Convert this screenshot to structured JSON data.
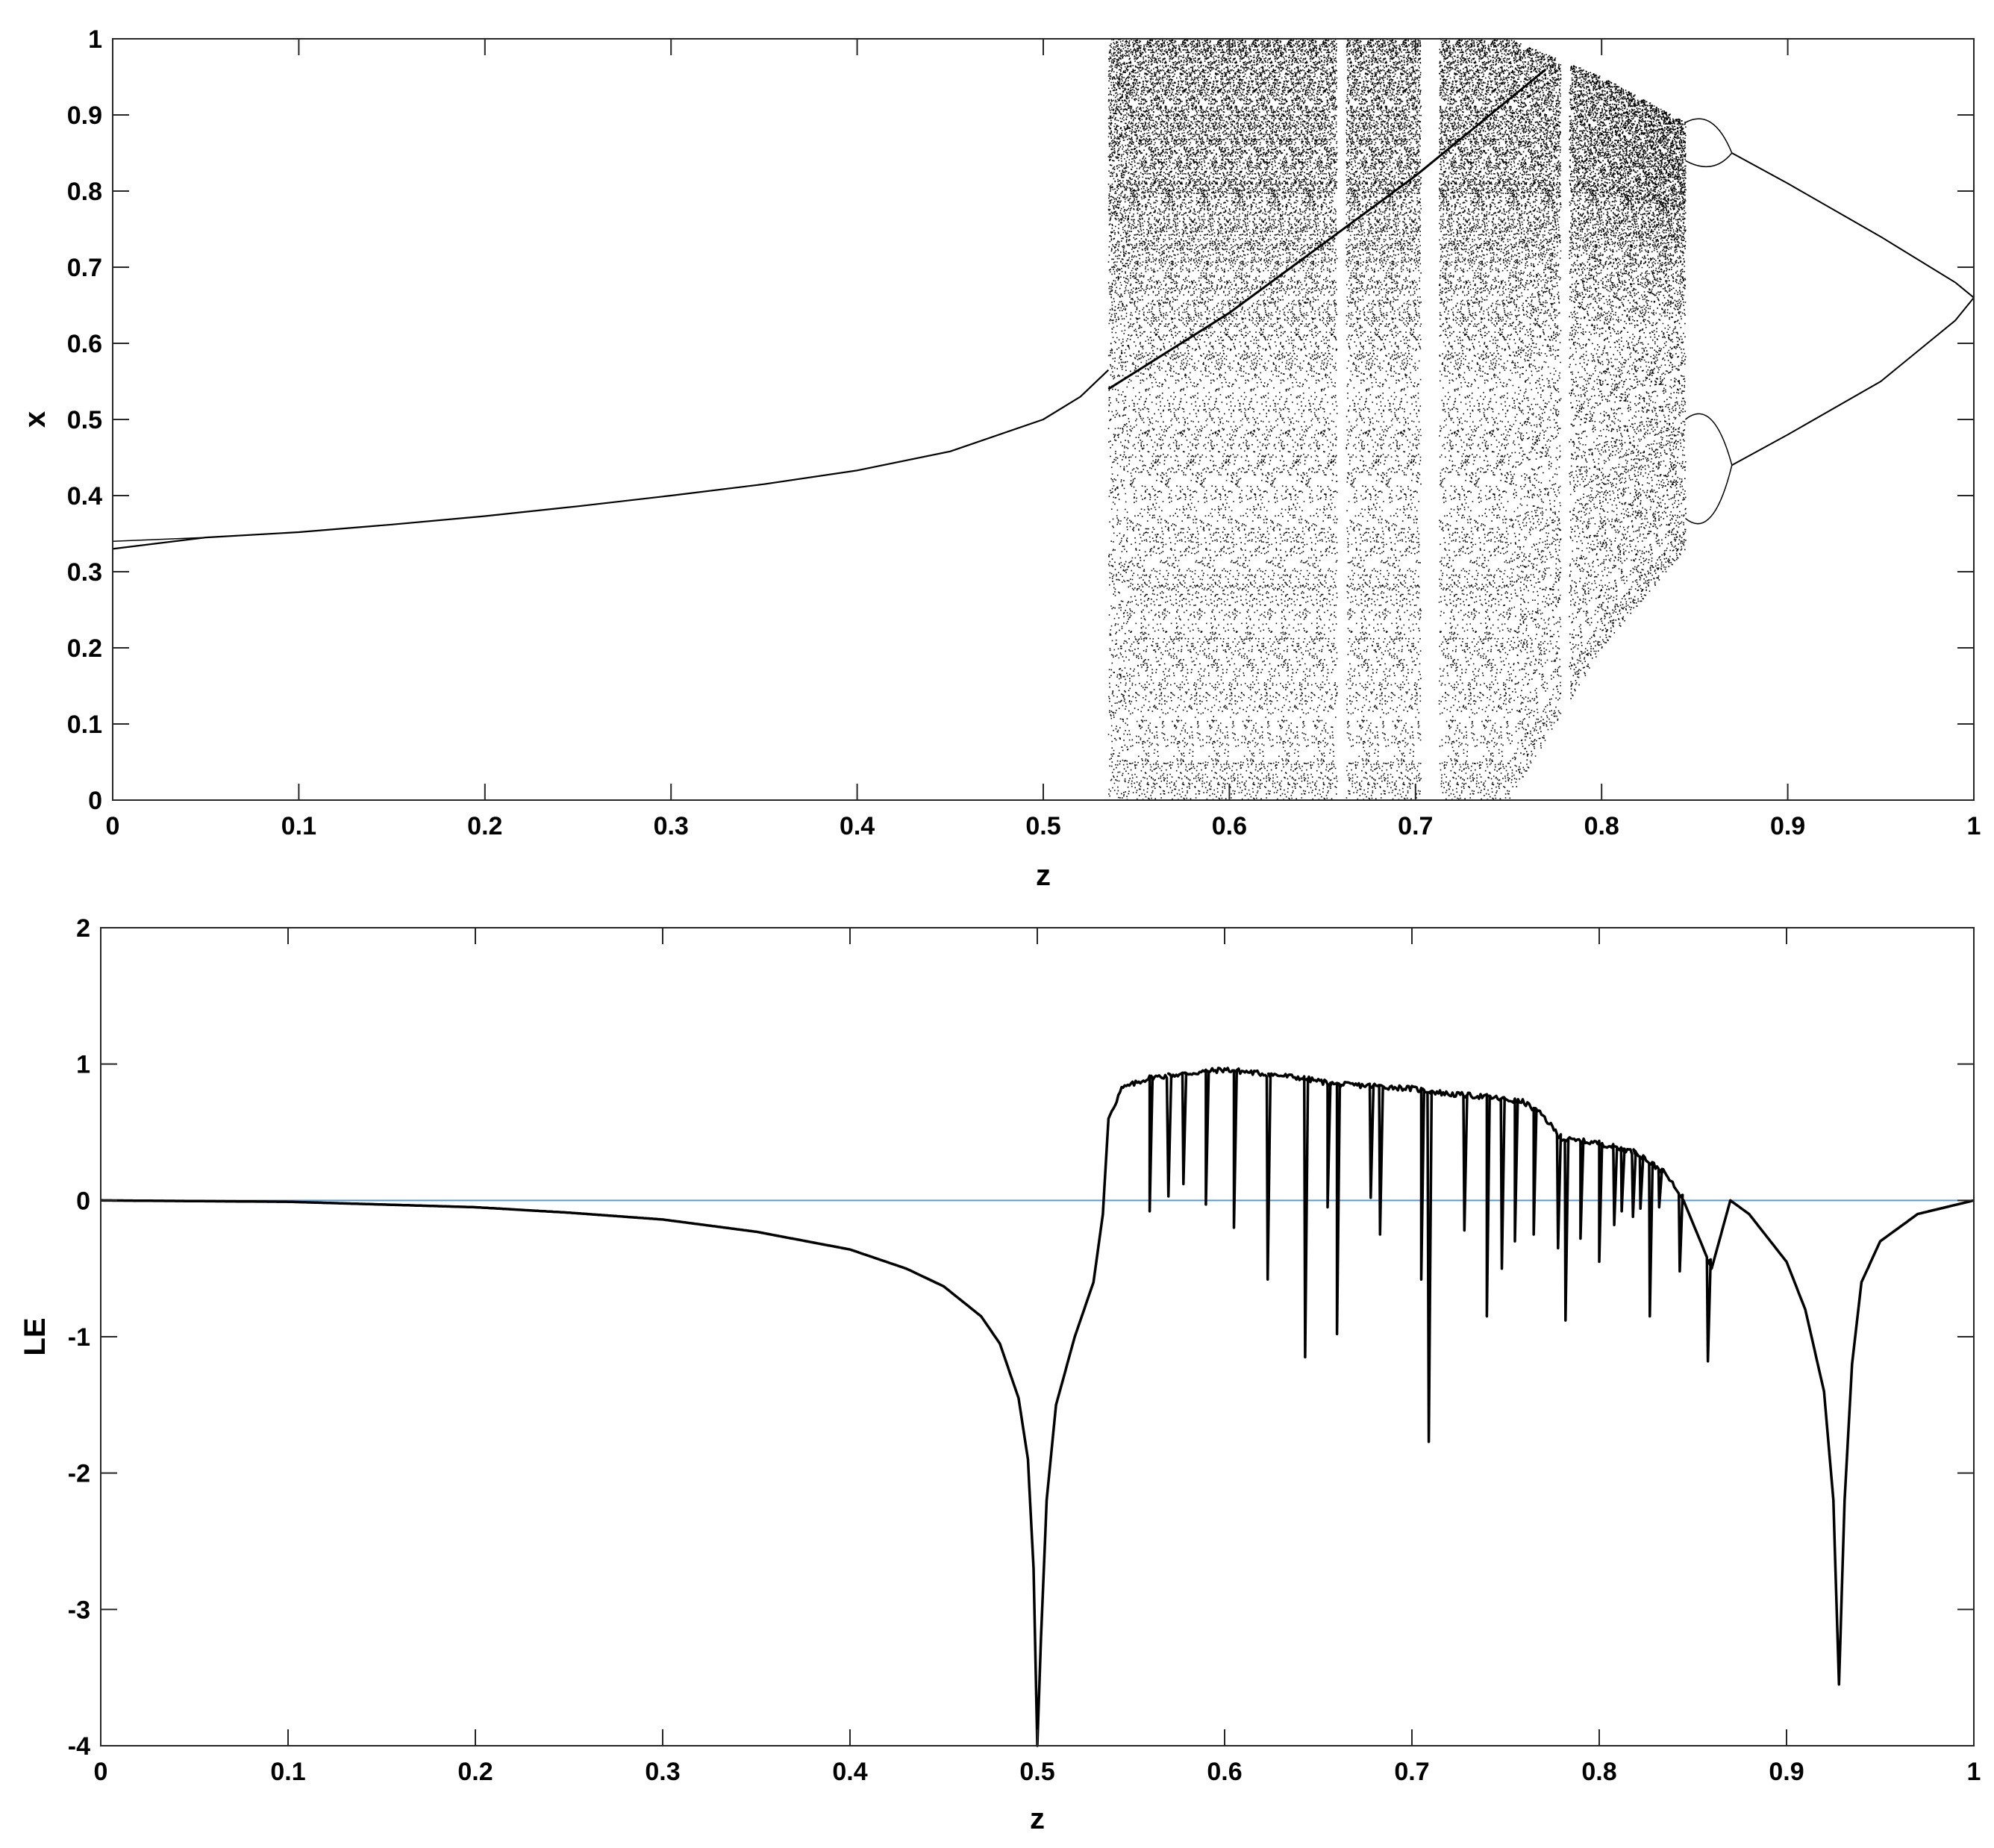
{
  "chart_data": [
    {
      "type": "scatter",
      "panel": "top",
      "description_kind": "bifurcation diagram",
      "xlabel": "z",
      "ylabel": "x",
      "xlim": [
        0,
        1
      ],
      "ylim": [
        0,
        1
      ],
      "xticks": [
        "0",
        "0.1",
        "0.2",
        "0.3",
        "0.4",
        "0.5",
        "0.6",
        "0.7",
        "0.8",
        "0.9",
        "1"
      ],
      "yticks": [
        "0",
        "0.1",
        "0.2",
        "0.3",
        "0.4",
        "0.5",
        "0.6",
        "0.7",
        "0.8",
        "0.9",
        "1"
      ],
      "grid": false,
      "marker_color": "#000000",
      "fixed_point_curve": {
        "x": [
          0,
          0.05,
          0.1,
          0.15,
          0.2,
          0.25,
          0.3,
          0.35,
          0.4,
          0.45,
          0.5,
          0.52,
          0.535
        ],
        "y": [
          0.33,
          0.345,
          0.352,
          0.362,
          0.373,
          0.386,
          0.4,
          0.415,
          0.433,
          0.458,
          0.5,
          0.53,
          0.565
        ]
      },
      "chaotic_region": {
        "z_range": [
          0.535,
          0.845
        ],
        "upper_envelope": {
          "x": [
            0.535,
            0.6,
            0.75,
            0.8,
            0.845
          ],
          "y": [
            1.0,
            1.0,
            1.0,
            0.95,
            0.89
          ]
        },
        "lower_envelope": {
          "x": [
            0.535,
            0.75,
            0.8,
            0.845
          ],
          "y": [
            0.0,
            0.0,
            0.2,
            0.33
          ]
        },
        "periodic_windows": [
          0.66,
          0.705,
          0.71,
          0.78
        ]
      },
      "period_two_branch": {
        "x": [
          0.87,
          0.9,
          0.95,
          0.99,
          1.0
        ],
        "upper": [
          0.85,
          0.81,
          0.74,
          0.68,
          0.66
        ],
        "lower": [
          0.44,
          0.48,
          0.55,
          0.63,
          0.66
        ]
      }
    },
    {
      "type": "line",
      "panel": "bottom",
      "xlabel": "z",
      "ylabel": "LE",
      "xlim": [
        0,
        1
      ],
      "ylim": [
        -4,
        2
      ],
      "xticks": [
        "0",
        "0.1",
        "0.2",
        "0.3",
        "0.4",
        "0.5",
        "0.6",
        "0.7",
        "0.8",
        "0.9",
        "1"
      ],
      "yticks": [
        "-4",
        "-3",
        "-2",
        "-1",
        "0",
        "1",
        "2"
      ],
      "grid": false,
      "line_color": "#000000",
      "reference_line": {
        "y": 0,
        "color": "#5b9bd5"
      },
      "series": [
        {
          "x": [
            0,
            0.1,
            0.2,
            0.25,
            0.3,
            0.35,
            0.4,
            0.43,
            0.45,
            0.47,
            0.48,
            0.49,
            0.495,
            0.498,
            0.5,
            0.502,
            0.505,
            0.51,
            0.52,
            0.53,
            0.535,
            0.538,
            0.545,
            0.56,
            0.58,
            0.6,
            0.62,
            0.64,
            0.66,
            0.68,
            0.7,
            0.71,
            0.72,
            0.74,
            0.76,
            0.77,
            0.78,
            0.8,
            0.82,
            0.835,
            0.845,
            0.86,
            0.87,
            0.88,
            0.9,
            0.91,
            0.92,
            0.925,
            0.928,
            0.931,
            0.935,
            0.94,
            0.95,
            0.97,
            1.0
          ],
          "y": [
            0,
            -0.01,
            -0.05,
            -0.09,
            -0.14,
            -0.23,
            -0.36,
            -0.5,
            -0.63,
            -0.85,
            -1.05,
            -1.45,
            -1.9,
            -2.7,
            -4.0,
            -3.2,
            -2.2,
            -1.5,
            -1.0,
            -0.6,
            -0.1,
            0.6,
            0.82,
            0.9,
            0.93,
            0.96,
            0.93,
            0.9,
            0.85,
            0.84,
            0.82,
            0.8,
            0.78,
            0.76,
            0.72,
            0.62,
            0.45,
            0.42,
            0.35,
            0.2,
            0.0,
            -0.5,
            0.0,
            -0.1,
            -0.45,
            -0.8,
            -1.4,
            -2.2,
            -3.55,
            -2.2,
            -1.2,
            -0.6,
            -0.3,
            -0.1,
            0.0
          ]
        }
      ],
      "negative_spikes": [
        {
          "x": 0.56,
          "y": -0.08
        },
        {
          "x": 0.57,
          "y": 0.03
        },
        {
          "x": 0.578,
          "y": 0.12
        },
        {
          "x": 0.59,
          "y": -0.03
        },
        {
          "x": 0.605,
          "y": -0.2
        },
        {
          "x": 0.623,
          "y": -0.58
        },
        {
          "x": 0.643,
          "y": -1.15
        },
        {
          "x": 0.655,
          "y": -0.05
        },
        {
          "x": 0.66,
          "y": -0.98
        },
        {
          "x": 0.678,
          "y": 0.02
        },
        {
          "x": 0.683,
          "y": -0.25
        },
        {
          "x": 0.705,
          "y": -0.58
        },
        {
          "x": 0.709,
          "y": -1.77
        },
        {
          "x": 0.728,
          "y": -0.22
        },
        {
          "x": 0.74,
          "y": -0.85
        },
        {
          "x": 0.748,
          "y": -0.5
        },
        {
          "x": 0.755,
          "y": -0.3
        },
        {
          "x": 0.765,
          "y": -0.25
        },
        {
          "x": 0.778,
          "y": -0.35
        },
        {
          "x": 0.782,
          "y": -0.88
        },
        {
          "x": 0.79,
          "y": -0.28
        },
        {
          "x": 0.8,
          "y": -0.45
        },
        {
          "x": 0.808,
          "y": -0.18
        },
        {
          "x": 0.812,
          "y": -0.08
        },
        {
          "x": 0.818,
          "y": -0.12
        },
        {
          "x": 0.822,
          "y": -0.06
        },
        {
          "x": 0.827,
          "y": -0.85
        },
        {
          "x": 0.832,
          "y": -0.05
        },
        {
          "x": 0.843,
          "y": -0.52
        },
        {
          "x": 0.858,
          "y": -1.18
        }
      ]
    }
  ]
}
